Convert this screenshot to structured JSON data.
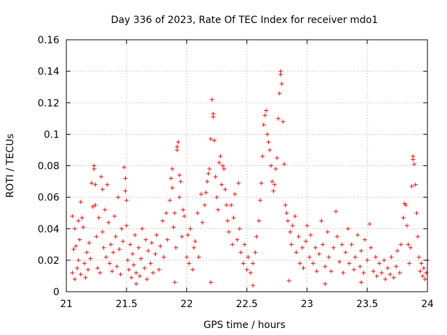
{
  "chart_data": {
    "type": "scatter",
    "title": "Day 336 of 2023, Rate Of TEC Index for receiver mdo1",
    "xlabel": "GPS time / hours",
    "ylabel": "ROTI / TECUs",
    "xlim": [
      21,
      24
    ],
    "ylim": [
      0,
      0.16
    ],
    "xticks": [
      21,
      21.5,
      22,
      22.5,
      23,
      23.5,
      24
    ],
    "xtick_labels": [
      "21",
      "21.5",
      "22",
      "22.5",
      "23",
      "23.5",
      "24"
    ],
    "yticks": [
      0,
      0.02,
      0.04,
      0.06,
      0.08,
      0.1,
      0.12,
      0.14,
      0.16
    ],
    "ytick_labels": [
      "0",
      "0.02",
      "0.04",
      "0.06",
      "0.08",
      "0.1",
      "0.12",
      "0.14",
      "0.16"
    ],
    "grid": true,
    "marker": "+",
    "marker_color": "#ff0000",
    "series": [
      {
        "name": "ROTI",
        "points": [
          [
            21.05,
            0.012
          ],
          [
            21.05,
            0.048
          ],
          [
            21.06,
            0.027
          ],
          [
            21.07,
            0.008
          ],
          [
            21.07,
            0.04
          ],
          [
            21.08,
            0.029
          ],
          [
            21.09,
            0.015
          ],
          [
            21.1,
            0.02
          ],
          [
            21.1,
            0.045
          ],
          [
            21.11,
            0.033
          ],
          [
            21.12,
            0.057
          ],
          [
            21.12,
            0.011
          ],
          [
            21.13,
            0.047
          ],
          [
            21.14,
            0.041
          ],
          [
            21.15,
            0.018
          ],
          [
            21.16,
            0.009
          ],
          [
            21.17,
            0.025
          ],
          [
            21.18,
            0.014
          ],
          [
            21.19,
            0.031
          ],
          [
            21.2,
            0.021
          ],
          [
            21.21,
            0.069
          ],
          [
            21.22,
            0.054
          ],
          [
            21.23,
            0.08
          ],
          [
            21.23,
            0.078
          ],
          [
            21.24,
            0.068
          ],
          [
            21.24,
            0.055
          ],
          [
            21.25,
            0.035
          ],
          [
            21.26,
            0.015
          ],
          [
            21.27,
            0.047
          ],
          [
            21.28,
            0.012
          ],
          [
            21.29,
            0.073
          ],
          [
            21.3,
            0.065
          ],
          [
            21.3,
            0.038
          ],
          [
            21.31,
            0.028
          ],
          [
            21.32,
            0.052
          ],
          [
            21.33,
            0.022
          ],
          [
            21.34,
            0.068
          ],
          [
            21.35,
            0.044
          ],
          [
            21.36,
            0.018
          ],
          [
            21.37,
            0.03
          ],
          [
            21.38,
            0.013
          ],
          [
            21.39,
            0.025
          ],
          [
            21.4,
            0.048
          ],
          [
            21.41,
            0.035
          ],
          [
            21.42,
            0.016
          ],
          [
            21.43,
            0.06
          ],
          [
            21.44,
            0.027
          ],
          [
            21.45,
            0.011
          ],
          [
            21.46,
            0.04
          ],
          [
            21.47,
            0.032
          ],
          [
            21.48,
            0.079
          ],
          [
            21.49,
            0.072
          ],
          [
            21.49,
            0.064
          ],
          [
            21.5,
            0.058
          ],
          [
            21.5,
            0.042
          ],
          [
            21.51,
            0.02
          ],
          [
            21.52,
            0.014
          ],
          [
            21.53,
            0.03
          ],
          [
            21.54,
            0.009
          ],
          [
            21.55,
            0.024
          ],
          [
            21.56,
            0.017
          ],
          [
            21.57,
            0.036
          ],
          [
            21.58,
            0.012
          ],
          [
            21.6,
            0.028
          ],
          [
            21.61,
            0.01
          ],
          [
            21.62,
            0.021
          ],
          [
            21.63,
            0.04
          ],
          [
            21.65,
            0.015
          ],
          [
            21.66,
            0.033
          ],
          [
            21.67,
            0.008
          ],
          [
            21.68,
            0.026
          ],
          [
            21.7,
            0.018
          ],
          [
            21.71,
            0.031
          ],
          [
            21.72,
            0.012
          ],
          [
            21.74,
            0.024
          ],
          [
            21.75,
            0.036
          ],
          [
            21.77,
            0.014
          ],
          [
            21.78,
            0.029
          ],
          [
            21.8,
            0.045
          ],
          [
            21.81,
            0.022
          ],
          [
            21.83,
            0.05
          ],
          [
            21.84,
            0.033
          ],
          [
            21.86,
            0.058
          ],
          [
            21.87,
            0.072
          ],
          [
            21.88,
            0.078
          ],
          [
            21.88,
            0.066
          ],
          [
            21.89,
            0.041
          ],
          [
            21.9,
            0.05
          ],
          [
            21.91,
            0.028
          ],
          [
            21.92,
            0.092
          ],
          [
            21.92,
            0.09
          ],
          [
            21.93,
            0.095
          ],
          [
            21.94,
            0.074
          ],
          [
            21.94,
            0.06
          ],
          [
            21.95,
            0.07
          ],
          [
            21.96,
            0.035
          ],
          [
            21.97,
            0.052
          ],
          [
            21.98,
            0.048
          ],
          [
            22.0,
            0.022
          ],
          [
            22.01,
            0.036
          ],
          [
            22.02,
            0.018
          ],
          [
            22.03,
            0.04
          ],
          [
            22.05,
            0.014
          ],
          [
            22.06,
            0.028
          ],
          [
            22.07,
            0.032
          ],
          [
            22.09,
            0.05
          ],
          [
            22.1,
            0.022
          ],
          [
            22.12,
            0.062
          ],
          [
            22.13,
            0.044
          ],
          [
            22.15,
            0.055
          ],
          [
            22.16,
            0.063
          ],
          [
            22.17,
            0.07
          ],
          [
            22.18,
            0.075
          ],
          [
            22.19,
            0.078
          ],
          [
            22.2,
            0.097
          ],
          [
            22.21,
            0.122
          ],
          [
            22.22,
            0.111
          ],
          [
            22.22,
            0.113
          ],
          [
            22.23,
            0.096
          ],
          [
            22.24,
            0.073
          ],
          [
            22.25,
            0.06
          ],
          [
            22.26,
            0.052
          ],
          [
            22.27,
            0.082
          ],
          [
            22.28,
            0.086
          ],
          [
            22.29,
            0.068
          ],
          [
            22.3,
            0.08
          ],
          [
            22.31,
            0.078
          ],
          [
            22.32,
            0.065
          ],
          [
            22.33,
            0.055
          ],
          [
            22.34,
            0.045
          ],
          [
            22.35,
            0.038
          ],
          [
            22.37,
            0.055
          ],
          [
            22.38,
            0.03
          ],
          [
            22.39,
            0.047
          ],
          [
            22.4,
            0.062
          ],
          [
            22.42,
            0.033
          ],
          [
            22.43,
            0.069
          ],
          [
            22.44,
            0.04
          ],
          [
            22.45,
            0.025
          ],
          [
            22.47,
            0.018
          ],
          [
            22.48,
            0.03
          ],
          [
            22.5,
            0.014
          ],
          [
            22.51,
            0.022
          ],
          [
            22.53,
            0.012
          ],
          [
            22.55,
            0.018
          ],
          [
            22.57,
            0.025
          ],
          [
            22.58,
            0.035
          ],
          [
            22.6,
            0.045
          ],
          [
            22.61,
            0.058
          ],
          [
            22.62,
            0.069
          ],
          [
            22.63,
            0.086
          ],
          [
            22.64,
            0.106
          ],
          [
            22.65,
            0.112
          ],
          [
            22.66,
            0.115
          ],
          [
            22.67,
            0.1
          ],
          [
            22.68,
            0.095
          ],
          [
            22.69,
            0.09
          ],
          [
            22.7,
            0.08
          ],
          [
            22.71,
            0.07
          ],
          [
            22.72,
            0.064
          ],
          [
            22.73,
            0.068
          ],
          [
            22.74,
            0.078
          ],
          [
            22.75,
            0.085
          ],
          [
            22.76,
            0.11
          ],
          [
            22.77,
            0.126
          ],
          [
            22.78,
            0.138
          ],
          [
            22.78,
            0.14
          ],
          [
            22.79,
            0.132
          ],
          [
            22.8,
            0.108
          ],
          [
            22.81,
            0.081
          ],
          [
            22.82,
            0.055
          ],
          [
            22.83,
            0.05
          ],
          [
            22.84,
            0.045
          ],
          [
            22.86,
            0.038
          ],
          [
            22.87,
            0.03
          ],
          [
            22.88,
            0.042
          ],
          [
            22.9,
            0.048
          ],
          [
            22.91,
            0.025
          ],
          [
            22.93,
            0.035
          ],
          [
            22.94,
            0.018
          ],
          [
            22.96,
            0.028
          ],
          [
            22.97,
            0.015
          ],
          [
            22.99,
            0.032
          ],
          [
            23.0,
            0.042
          ],
          [
            23.02,
            0.022
          ],
          [
            23.03,
            0.036
          ],
          [
            23.05,
            0.018
          ],
          [
            23.07,
            0.028
          ],
          [
            23.08,
            0.013
          ],
          [
            23.1,
            0.024
          ],
          [
            23.12,
            0.045
          ],
          [
            23.13,
            0.03
          ],
          [
            23.15,
            0.016
          ],
          [
            23.17,
            0.038
          ],
          [
            23.18,
            0.022
          ],
          [
            23.2,
            0.013
          ],
          [
            23.22,
            0.028
          ],
          [
            23.24,
            0.051
          ],
          [
            23.25,
            0.035
          ],
          [
            23.27,
            0.019
          ],
          [
            23.29,
            0.03
          ],
          [
            23.3,
            0.012
          ],
          [
            23.32,
            0.025
          ],
          [
            23.34,
            0.04
          ],
          [
            23.35,
            0.018
          ],
          [
            23.37,
            0.03
          ],
          [
            23.39,
            0.014
          ],
          [
            23.4,
            0.022
          ],
          [
            23.42,
            0.036
          ],
          [
            23.44,
            0.016
          ],
          [
            23.45,
            0.026
          ],
          [
            23.47,
            0.012
          ],
          [
            23.48,
            0.033
          ],
          [
            23.5,
            0.02
          ],
          [
            23.52,
            0.043
          ],
          [
            23.53,
            0.028
          ],
          [
            23.55,
            0.013
          ],
          [
            23.57,
            0.022
          ],
          [
            23.58,
            0.01
          ],
          [
            23.6,
            0.018
          ],
          [
            23.62,
            0.012
          ],
          [
            23.64,
            0.02
          ],
          [
            23.65,
            0.008
          ],
          [
            23.67,
            0.015
          ],
          [
            23.69,
            0.011
          ],
          [
            23.7,
            0.022
          ],
          [
            23.72,
            0.009
          ],
          [
            23.74,
            0.016
          ],
          [
            23.75,
            0.026
          ],
          [
            23.77,
            0.012
          ],
          [
            23.78,
            0.03
          ],
          [
            23.8,
            0.047
          ],
          [
            23.81,
            0.056
          ],
          [
            23.82,
            0.055
          ],
          [
            23.83,
            0.042
          ],
          [
            23.84,
            0.03
          ],
          [
            23.85,
            0.018
          ],
          [
            23.86,
            0.028
          ],
          [
            23.87,
            0.067
          ],
          [
            23.88,
            0.084
          ],
          [
            23.88,
            0.086
          ],
          [
            23.89,
            0.081
          ],
          [
            23.9,
            0.068
          ],
          [
            23.91,
            0.05
          ],
          [
            23.92,
            0.035
          ],
          [
            23.93,
            0.022
          ],
          [
            23.94,
            0.013
          ],
          [
            23.95,
            0.018
          ],
          [
            23.96,
            0.01
          ],
          [
            23.97,
            0.015
          ],
          [
            23.98,
            0.008
          ],
          [
            23.99,
            0.012
          ],
          [
            24.0,
            0.02
          ],
          [
            21.58,
            0.005
          ],
          [
            21.9,
            0.006
          ],
          [
            22.2,
            0.006
          ],
          [
            22.55,
            0.004
          ],
          [
            22.85,
            0.007
          ],
          [
            23.15,
            0.005
          ],
          [
            23.45,
            0.006
          ]
        ]
      }
    ]
  }
}
